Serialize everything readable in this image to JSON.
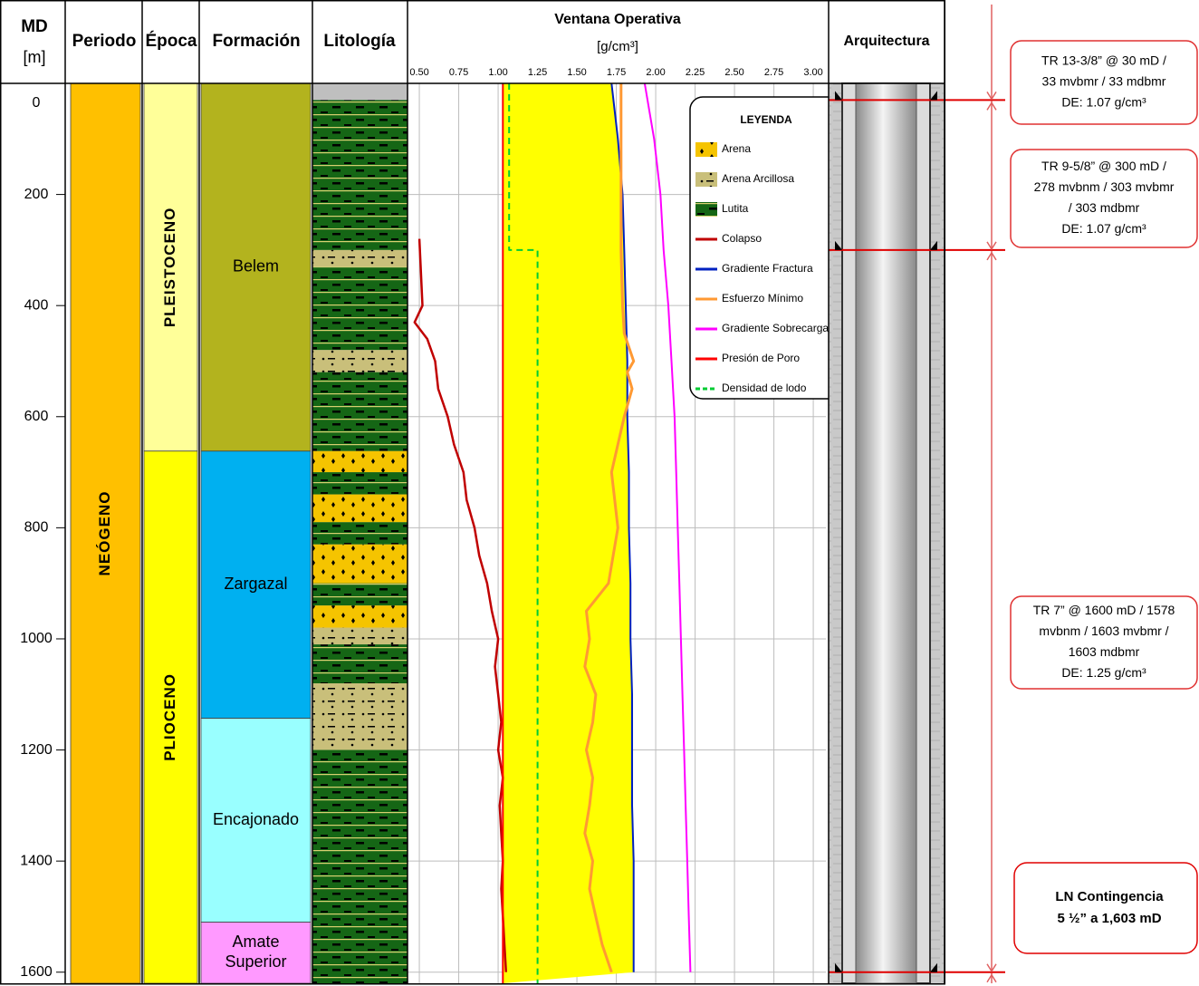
{
  "chart_data": {
    "type": "well_log",
    "columns": {
      "md": "MD",
      "md_unit": "[m]",
      "period": "Periodo",
      "epoch": "Época",
      "formation": "Formación",
      "lithology": "Litología",
      "window": "Ventana Operativa",
      "window_unit": "[g/cm³]",
      "architecture": "Arquitectura"
    },
    "ylim": [
      0,
      1620
    ],
    "yticks": [
      0,
      200,
      400,
      600,
      800,
      1000,
      1200,
      1400,
      1600
    ],
    "xlim": [
      0.425,
      3.08
    ],
    "xticks": [
      {
        "value": 0.5,
        "label": "0.50"
      },
      {
        "value": 0.75,
        "label": "0.75"
      },
      {
        "value": 1,
        "label": "1.00"
      },
      {
        "value": 1.25,
        "label": "1.25"
      },
      {
        "value": 1.5,
        "label": "1.50"
      },
      {
        "value": 1.75,
        "label": "1.75"
      },
      {
        "value": 2,
        "label": "2.00"
      },
      {
        "value": 2.25,
        "label": "2.25"
      },
      {
        "value": 2.5,
        "label": "2.50"
      },
      {
        "value": 2.75,
        "label": "2.75"
      },
      {
        "value": 3,
        "label": "3.00"
      }
    ],
    "grid": true,
    "periods": [
      {
        "name": "NEÓGENO",
        "top": 0,
        "base": 1620,
        "color": "#ffc000"
      }
    ],
    "epochs": [
      {
        "name": "PLEISTOCENO",
        "top": 0,
        "base": 662,
        "color": "#ffff99"
      },
      {
        "name": "PLIOCENO",
        "top": 662,
        "base": 1620,
        "color": "#ffff00"
      }
    ],
    "formations": [
      {
        "lines": [
          "Belem"
        ],
        "top": 0,
        "base": 662,
        "color": "#b3b31e"
      },
      {
        "lines": [
          "Zargazal"
        ],
        "top": 662,
        "base": 1143,
        "color": "#00b0f0"
      },
      {
        "lines": [
          "Encajonado"
        ],
        "top": 1143,
        "base": 1510,
        "color": "#99ffff"
      },
      {
        "lines": [
          "Amate",
          "Superior"
        ],
        "top": 1510,
        "base": 1620,
        "color": "#ff99ff"
      }
    ],
    "lithology": [
      {
        "top": 30,
        "base": 300,
        "kind": 2
      },
      {
        "top": 300,
        "base": 330,
        "kind": 1
      },
      {
        "top": 330,
        "base": 480,
        "kind": 2
      },
      {
        "top": 480,
        "base": 520,
        "kind": 1
      },
      {
        "top": 520,
        "base": 662,
        "kind": 2
      },
      {
        "top": 662,
        "base": 700,
        "kind": 0
      },
      {
        "top": 700,
        "base": 740,
        "kind": 2
      },
      {
        "top": 740,
        "base": 790,
        "kind": 0
      },
      {
        "top": 790,
        "base": 830,
        "kind": 2
      },
      {
        "top": 830,
        "base": 900,
        "kind": 0
      },
      {
        "top": 900,
        "base": 940,
        "kind": 2
      },
      {
        "top": 940,
        "base": 980,
        "kind": 0
      },
      {
        "top": 980,
        "base": 1010,
        "kind": 1
      },
      {
        "top": 1010,
        "base": 1080,
        "kind": 2
      },
      {
        "top": 1080,
        "base": 1200,
        "kind": 1
      },
      {
        "top": 1200,
        "base": 1620,
        "kind": 2
      }
    ],
    "legend": {
      "title": "LEYENDA",
      "lithology": [
        {
          "name": "Arena",
          "color": "#f5c400"
        },
        {
          "name": "Arena Arcillosa",
          "color": "#c9bf7a"
        },
        {
          "name": "Lutita",
          "color": "#156615"
        }
      ]
    },
    "series": [
      {
        "name": "Colapso",
        "color": "#c00000",
        "width": 2.5,
        "md": [
          280,
          400,
          430,
          460,
          500,
          550,
          600,
          650,
          700,
          750,
          800,
          850,
          900,
          950,
          1000,
          1050,
          1100,
          1150,
          1200,
          1250,
          1300,
          1350,
          1400,
          1450,
          1500,
          1550,
          1600
        ],
        "values": [
          0.5,
          0.52,
          0.47,
          0.55,
          0.6,
          0.62,
          0.68,
          0.72,
          0.78,
          0.8,
          0.85,
          0.88,
          0.93,
          0.96,
          1.0,
          0.98,
          1.0,
          1.02,
          1.0,
          1.03,
          1.01,
          1.02,
          1.03,
          1.02,
          1.03,
          1.04,
          1.05
        ]
      },
      {
        "name": "Gradiente Fractura",
        "color": "#0020c0",
        "width": 2,
        "md": [
          0,
          100,
          200,
          300,
          400,
          500,
          600,
          700,
          800,
          900,
          1000,
          1100,
          1200,
          1300,
          1400,
          1500,
          1600
        ],
        "values": [
          1.72,
          1.76,
          1.79,
          1.8,
          1.81,
          1.82,
          1.82,
          1.83,
          1.83,
          1.84,
          1.84,
          1.85,
          1.85,
          1.85,
          1.86,
          1.86,
          1.86
        ]
      },
      {
        "name": "Esfuerzo Mínimo",
        "color": "#ff9933",
        "width": 3,
        "md": [
          0,
          100,
          200,
          300,
          400,
          450,
          500,
          520,
          550,
          600,
          650,
          700,
          750,
          800,
          850,
          900,
          950,
          1000,
          1050,
          1100,
          1150,
          1200,
          1250,
          1300,
          1350,
          1400,
          1450,
          1500,
          1550,
          1600
        ],
        "values": [
          1.78,
          1.78,
          1.78,
          1.78,
          1.79,
          1.8,
          1.86,
          1.82,
          1.85,
          1.8,
          1.76,
          1.72,
          1.74,
          1.76,
          1.73,
          1.7,
          1.56,
          1.58,
          1.55,
          1.62,
          1.6,
          1.56,
          1.6,
          1.58,
          1.55,
          1.6,
          1.58,
          1.62,
          1.66,
          1.72
        ]
      },
      {
        "name": "Gradiente Sobrecarga",
        "color": "#ff00ff",
        "width": 2,
        "md": [
          0,
          100,
          200,
          300,
          400,
          500,
          600,
          700,
          800,
          900,
          1000,
          1100,
          1200,
          1300,
          1400,
          1500,
          1600
        ],
        "values": [
          1.93,
          1.99,
          2.03,
          2.05,
          2.08,
          2.1,
          2.12,
          2.13,
          2.14,
          2.15,
          2.16,
          2.17,
          2.18,
          2.19,
          2.2,
          2.21,
          2.22
        ]
      },
      {
        "name": "Presión de Poro",
        "color": "#ff0000",
        "width": 2,
        "md": [
          0,
          1620
        ],
        "values": [
          1.03,
          1.03
        ]
      },
      {
        "name": "Densidad de lodo",
        "color": "#00cc33",
        "width": 2,
        "dash": true,
        "md": [
          0,
          300,
          300,
          1620
        ],
        "values": [
          1.07,
          1.07,
          1.25,
          1.25
        ]
      }
    ],
    "casings": [
      {
        "md": 30,
        "lines": [
          "TR 13-3/8” @ 30 mD /",
          "33 mvbmr / 33 mdbmr",
          "DE: 1.07 g/cm³"
        ]
      },
      {
        "md": 300,
        "lines": [
          "TR 9-5/8” @ 300 mD /",
          "278 mvbnm / 303 mvbmr",
          "/ 303 mdbmr",
          "DE: 1.07 g/cm³"
        ]
      },
      {
        "md": 1600,
        "lines": [
          "TR 7” @ 1600 mD / 1578",
          "mvbnm / 1603 mvbmr /",
          "1603 mdbmr",
          "DE: 1.25 g/cm³"
        ]
      }
    ],
    "contingency": {
      "lines": [
        "LN Contingencia",
        "5 ½” a 1,603 mD"
      ]
    }
  }
}
